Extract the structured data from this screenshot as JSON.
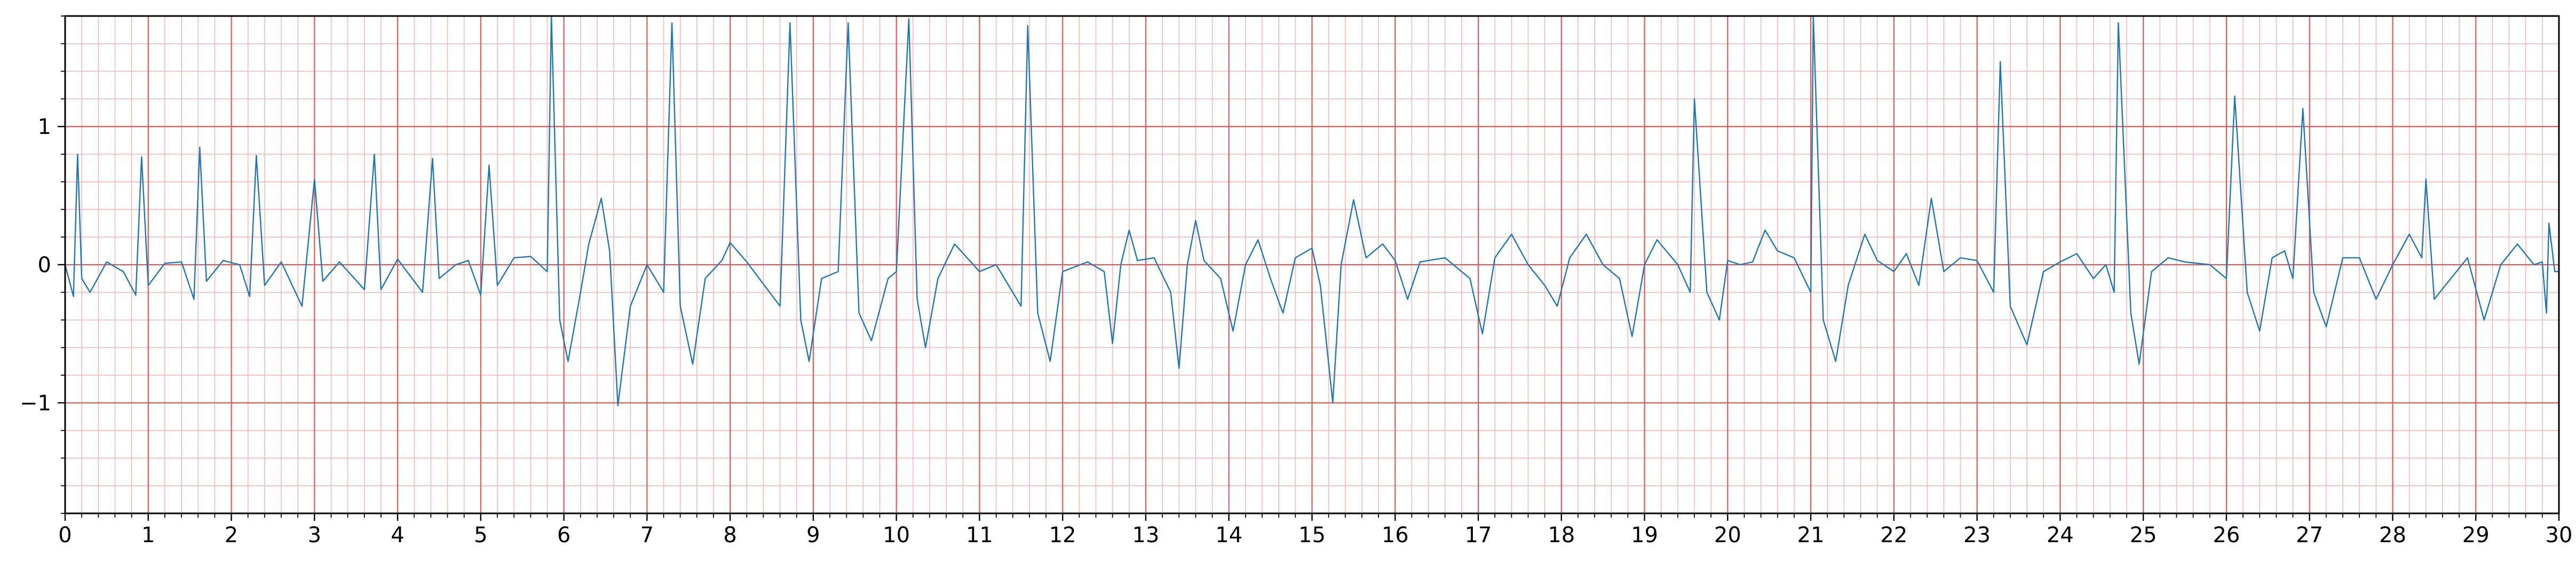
{
  "chart_data": {
    "type": "line",
    "title": "",
    "xlabel": "",
    "ylabel": "",
    "xlim": [
      0,
      30
    ],
    "ylim": [
      -1.8,
      1.8
    ],
    "x_major_step": 1,
    "x_minor_step": 0.2,
    "y_major_step": 1,
    "y_minor_step": 0.2,
    "x_ticks": [
      0,
      1,
      2,
      3,
      4,
      5,
      6,
      7,
      8,
      9,
      10,
      11,
      12,
      13,
      14,
      15,
      16,
      17,
      18,
      19,
      20,
      21,
      22,
      23,
      24,
      25,
      26,
      27,
      28,
      29,
      30
    ],
    "y_ticks": [
      -1,
      0,
      1
    ],
    "y_tick_labels": [
      "−1",
      "0",
      "1"
    ],
    "grid": true,
    "colors": {
      "line": "#1f77b4",
      "major_grid": "#e05a5a",
      "minor_grid": "#f7b8b8",
      "axes": "#000000"
    },
    "series": [
      {
        "values": [
          [
            0.0,
            0.0
          ],
          [
            0.1,
            -0.23
          ],
          [
            0.15,
            0.8
          ],
          [
            0.2,
            -0.1
          ],
          [
            0.3,
            -0.2
          ],
          [
            0.5,
            0.02
          ],
          [
            0.7,
            -0.05
          ],
          [
            0.85,
            -0.22
          ],
          [
            0.92,
            0.78
          ],
          [
            1.0,
            -0.15
          ],
          [
            1.2,
            0.01
          ],
          [
            1.4,
            0.02
          ],
          [
            1.55,
            -0.25
          ],
          [
            1.62,
            0.85
          ],
          [
            1.7,
            -0.12
          ],
          [
            1.9,
            0.03
          ],
          [
            2.1,
            0.0
          ],
          [
            2.22,
            -0.23
          ],
          [
            2.3,
            0.79
          ],
          [
            2.4,
            -0.15
          ],
          [
            2.6,
            0.02
          ],
          [
            2.85,
            -0.3
          ],
          [
            3.0,
            0.62
          ],
          [
            3.1,
            -0.12
          ],
          [
            3.3,
            0.02
          ],
          [
            3.6,
            -0.18
          ],
          [
            3.72,
            0.8
          ],
          [
            3.8,
            -0.18
          ],
          [
            4.0,
            0.04
          ],
          [
            4.3,
            -0.2
          ],
          [
            4.42,
            0.77
          ],
          [
            4.5,
            -0.1
          ],
          [
            4.7,
            0.0
          ],
          [
            4.85,
            0.03
          ],
          [
            5.0,
            -0.22
          ],
          [
            5.1,
            0.72
          ],
          [
            5.2,
            -0.15
          ],
          [
            5.4,
            0.05
          ],
          [
            5.6,
            0.06
          ],
          [
            5.8,
            -0.05
          ],
          [
            5.85,
            1.8
          ],
          [
            5.95,
            -0.4
          ],
          [
            6.05,
            -0.7
          ],
          [
            6.2,
            -0.2
          ],
          [
            6.3,
            0.15
          ],
          [
            6.45,
            0.48
          ],
          [
            6.55,
            0.1
          ],
          [
            6.65,
            -1.02
          ],
          [
            6.8,
            -0.3
          ],
          [
            7.0,
            0.0
          ],
          [
            7.2,
            -0.2
          ],
          [
            7.3,
            1.75
          ],
          [
            7.4,
            -0.3
          ],
          [
            7.55,
            -0.72
          ],
          [
            7.7,
            -0.1
          ],
          [
            7.9,
            0.03
          ],
          [
            8.0,
            0.16
          ],
          [
            8.2,
            0.02
          ],
          [
            8.6,
            -0.3
          ],
          [
            8.72,
            1.75
          ],
          [
            8.85,
            -0.4
          ],
          [
            8.95,
            -0.7
          ],
          [
            9.1,
            -0.1
          ],
          [
            9.3,
            -0.05
          ],
          [
            9.42,
            1.75
          ],
          [
            9.55,
            -0.35
          ],
          [
            9.7,
            -0.55
          ],
          [
            9.9,
            -0.1
          ],
          [
            10.0,
            -0.05
          ],
          [
            10.15,
            1.78
          ],
          [
            10.25,
            -0.25
          ],
          [
            10.35,
            -0.6
          ],
          [
            10.5,
            -0.1
          ],
          [
            10.7,
            0.15
          ],
          [
            10.85,
            0.05
          ],
          [
            11.0,
            -0.05
          ],
          [
            11.2,
            0.0
          ],
          [
            11.5,
            -0.3
          ],
          [
            11.58,
            1.73
          ],
          [
            11.7,
            -0.35
          ],
          [
            11.85,
            -0.7
          ],
          [
            12.0,
            -0.05
          ],
          [
            12.3,
            0.02
          ],
          [
            12.5,
            -0.05
          ],
          [
            12.6,
            -0.57
          ],
          [
            12.7,
            0.0
          ],
          [
            12.8,
            0.25
          ],
          [
            12.9,
            0.03
          ],
          [
            13.1,
            0.05
          ],
          [
            13.3,
            -0.2
          ],
          [
            13.4,
            -0.75
          ],
          [
            13.5,
            0.0
          ],
          [
            13.6,
            0.32
          ],
          [
            13.7,
            0.03
          ],
          [
            13.9,
            -0.1
          ],
          [
            14.05,
            -0.48
          ],
          [
            14.2,
            0.0
          ],
          [
            14.35,
            0.18
          ],
          [
            14.5,
            -0.1
          ],
          [
            14.65,
            -0.35
          ],
          [
            14.8,
            0.05
          ],
          [
            15.0,
            0.12
          ],
          [
            15.1,
            -0.15
          ],
          [
            15.25,
            -1.0
          ],
          [
            15.35,
            0.0
          ],
          [
            15.5,
            0.47
          ],
          [
            15.65,
            0.05
          ],
          [
            15.85,
            0.15
          ],
          [
            16.0,
            0.03
          ],
          [
            16.15,
            -0.25
          ],
          [
            16.3,
            0.02
          ],
          [
            16.6,
            0.05
          ],
          [
            16.9,
            -0.1
          ],
          [
            17.05,
            -0.5
          ],
          [
            17.2,
            0.05
          ],
          [
            17.4,
            0.22
          ],
          [
            17.6,
            0.0
          ],
          [
            17.8,
            -0.15
          ],
          [
            17.95,
            -0.3
          ],
          [
            18.1,
            0.05
          ],
          [
            18.3,
            0.22
          ],
          [
            18.5,
            0.0
          ],
          [
            18.7,
            -0.1
          ],
          [
            18.85,
            -0.52
          ],
          [
            19.0,
            0.0
          ],
          [
            19.15,
            0.18
          ],
          [
            19.4,
            0.0
          ],
          [
            19.55,
            -0.2
          ],
          [
            19.6,
            1.2
          ],
          [
            19.75,
            -0.2
          ],
          [
            19.9,
            -0.4
          ],
          [
            20.0,
            0.03
          ],
          [
            20.15,
            0.0
          ],
          [
            20.3,
            0.02
          ],
          [
            20.45,
            0.25
          ],
          [
            20.6,
            0.1
          ],
          [
            20.8,
            0.05
          ],
          [
            21.0,
            -0.2
          ],
          [
            21.03,
            1.8
          ],
          [
            21.15,
            -0.4
          ],
          [
            21.3,
            -0.7
          ],
          [
            21.45,
            -0.15
          ],
          [
            21.65,
            0.22
          ],
          [
            21.8,
            0.03
          ],
          [
            22.0,
            -0.05
          ],
          [
            22.15,
            0.08
          ],
          [
            22.3,
            -0.15
          ],
          [
            22.45,
            0.48
          ],
          [
            22.6,
            -0.05
          ],
          [
            22.8,
            0.05
          ],
          [
            23.0,
            0.03
          ],
          [
            23.2,
            -0.2
          ],
          [
            23.28,
            1.47
          ],
          [
            23.4,
            -0.3
          ],
          [
            23.6,
            -0.58
          ],
          [
            23.8,
            -0.05
          ],
          [
            24.0,
            0.02
          ],
          [
            24.2,
            0.08
          ],
          [
            24.4,
            -0.1
          ],
          [
            24.55,
            0.0
          ],
          [
            24.65,
            -0.2
          ],
          [
            24.7,
            1.75
          ],
          [
            24.85,
            -0.35
          ],
          [
            24.95,
            -0.72
          ],
          [
            25.1,
            -0.05
          ],
          [
            25.3,
            0.05
          ],
          [
            25.5,
            0.02
          ],
          [
            25.8,
            0.0
          ],
          [
            26.0,
            -0.1
          ],
          [
            26.1,
            1.22
          ],
          [
            26.25,
            -0.2
          ],
          [
            26.4,
            -0.48
          ],
          [
            26.55,
            0.05
          ],
          [
            26.7,
            0.1
          ],
          [
            26.8,
            -0.1
          ],
          [
            26.92,
            1.13
          ],
          [
            27.05,
            -0.2
          ],
          [
            27.2,
            -0.45
          ],
          [
            27.4,
            0.05
          ],
          [
            27.6,
            0.05
          ],
          [
            27.8,
            -0.25
          ],
          [
            28.0,
            0.0
          ],
          [
            28.2,
            0.22
          ],
          [
            28.35,
            0.05
          ],
          [
            28.4,
            0.62
          ],
          [
            28.5,
            -0.25
          ],
          [
            28.7,
            -0.1
          ],
          [
            28.9,
            0.05
          ],
          [
            29.1,
            -0.4
          ],
          [
            29.3,
            0.0
          ],
          [
            29.5,
            0.15
          ],
          [
            29.7,
            0.0
          ],
          [
            29.8,
            0.02
          ],
          [
            29.85,
            -0.35
          ],
          [
            29.88,
            0.3
          ],
          [
            29.95,
            -0.05
          ],
          [
            30.0,
            -0.05
          ]
        ]
      }
    ]
  }
}
